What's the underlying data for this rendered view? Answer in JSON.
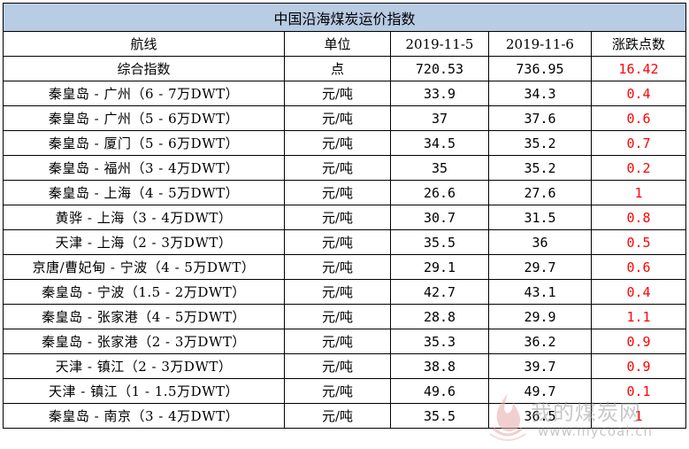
{
  "title": "中国沿海煤炭运价指数",
  "headers": [
    "航线",
    "单位",
    "2019-11-5",
    "2019-11-6",
    "涨跌点数"
  ],
  "composite": {
    "route": "综合指数",
    "unit": "点",
    "d1": "720.53",
    "d2": "736.95",
    "change": "16.42"
  },
  "rows": [
    {
      "route": "秦皇岛 - 广州（6 - 7万DWT）",
      "unit": "元/吨",
      "d1": "33.9",
      "d2": "34.3",
      "change": "0.4"
    },
    {
      "route": "秦皇岛 - 广州（5 - 6万DWT）",
      "unit": "元/吨",
      "d1": "37",
      "d2": "37.6",
      "change": "0.6"
    },
    {
      "route": "秦皇岛 - 厦门（5 - 6万DWT）",
      "unit": "元/吨",
      "d1": "34.5",
      "d2": "35.2",
      "change": "0.7"
    },
    {
      "route": "秦皇岛 - 福州（3 - 4万DWT）",
      "unit": "元/吨",
      "d1": "35",
      "d2": "35.2",
      "change": "0.2"
    },
    {
      "route": "秦皇岛 - 上海（4 - 5万DWT）",
      "unit": "元/吨",
      "d1": "26.6",
      "d2": "27.6",
      "change": "1"
    },
    {
      "route": "黄骅 - 上海（3 - 4万DWT）",
      "unit": "元/吨",
      "d1": "30.7",
      "d2": "31.5",
      "change": "0.8"
    },
    {
      "route": "天津 - 上海（2 - 3万DWT）",
      "unit": "元/吨",
      "d1": "35.5",
      "d2": "36",
      "change": "0.5"
    },
    {
      "route": "京唐/曹妃甸 - 宁波（4 - 5万DWT）",
      "unit": "元/吨",
      "d1": "29.1",
      "d2": "29.7",
      "change": "0.6"
    },
    {
      "route": "秦皇岛 - 宁波（1.5 - 2万DWT）",
      "unit": "元/吨",
      "d1": "42.7",
      "d2": "43.1",
      "change": "0.4"
    },
    {
      "route": "秦皇岛 - 张家港（4 - 5万DWT）",
      "unit": "元/吨",
      "d1": "28.8",
      "d2": "29.9",
      "change": "1.1"
    },
    {
      "route": "秦皇岛 - 张家港（2 - 3万DWT）",
      "unit": "元/吨",
      "d1": "35.3",
      "d2": "36.2",
      "change": "0.9"
    },
    {
      "route": "天津 - 镇江（2 - 3万DWT）",
      "unit": "元/吨",
      "d1": "38.8",
      "d2": "39.7",
      "change": "0.9"
    },
    {
      "route": "天津 - 镇江（1 - 1.5万DWT）",
      "unit": "元/吨",
      "d1": "49.6",
      "d2": "49.7",
      "change": "0.1"
    },
    {
      "route": "秦皇岛 - 南京（3 - 4万DWT）",
      "unit": "元/吨",
      "d1": "35.5",
      "d2": "36.5",
      "change": "1"
    }
  ],
  "watermark": {
    "text": "我的煤炭网",
    "url": "www.mycoal.cn"
  },
  "colors": {
    "title_bg": "#b8cce4",
    "change_text": "#ff0000"
  }
}
